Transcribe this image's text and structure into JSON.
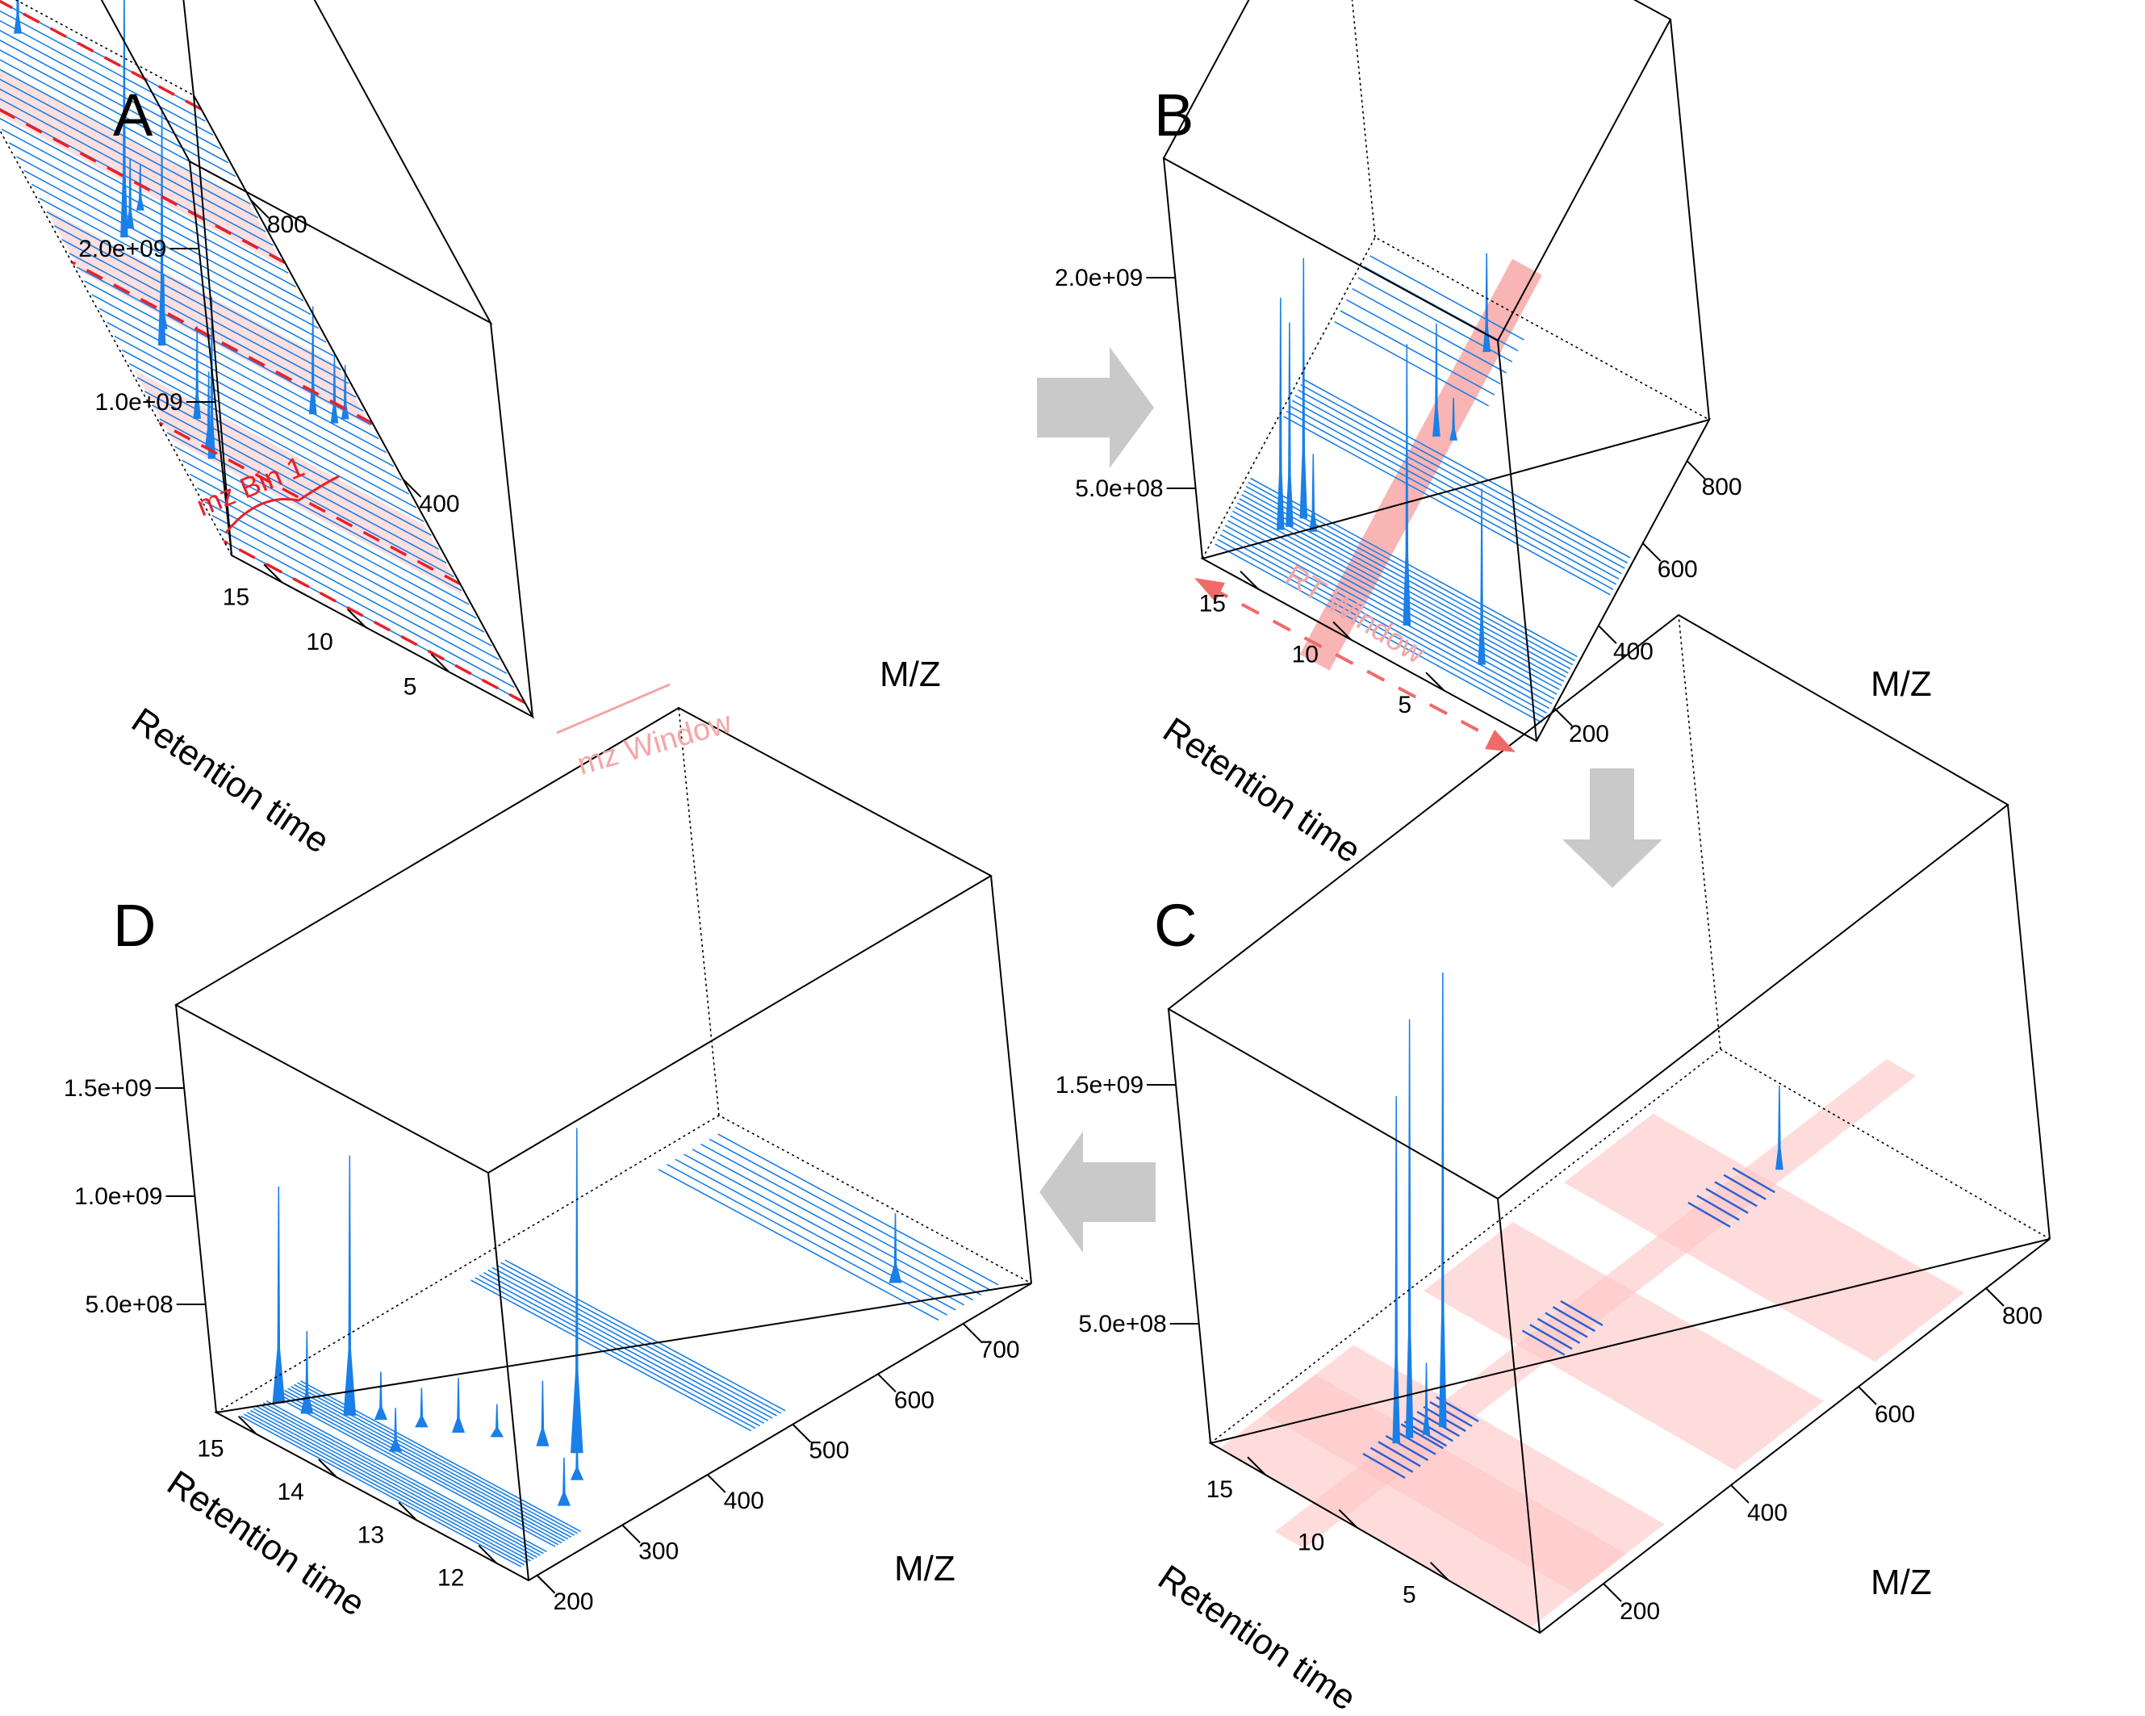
{
  "chart_data": [
    {
      "panel": "A",
      "type": "3d-spectrum",
      "zlabel": "",
      "xlabel": "Retention time",
      "ylabel": "M/Z",
      "z_ticks": [
        "1.0e+09",
        "2.0e+09"
      ],
      "rt_ticks": [
        "5",
        "10",
        "15"
      ],
      "mz_ticks": [
        "400",
        "800"
      ],
      "annotations": [
        "mz Bin 1",
        "mz Window"
      ],
      "peaks": [
        {
          "rt": 15.2,
          "mz": 235,
          "intensity": 1050000000.0
        },
        {
          "rt": 15.0,
          "mz": 252,
          "intensity": 500000000.0
        },
        {
          "rt": 14.6,
          "mz": 300,
          "intensity": 600000000.0
        },
        {
          "rt": 14.2,
          "mz": 410,
          "intensity": 1550000000.0
        },
        {
          "rt": 13.3,
          "mz": 445,
          "intensity": 350000000.0
        },
        {
          "rt": 12.4,
          "mz": 588,
          "intensity": 1700000000.0
        },
        {
          "rt": 11.5,
          "mz": 612,
          "intensity": 450000000.0
        },
        {
          "rt": 9.8,
          "mz": 660,
          "intensity": 300000000.0
        },
        {
          "rt": 4.6,
          "mz": 435,
          "intensity": 700000000.0
        },
        {
          "rt": 3.2,
          "mz": 440,
          "intensity": 450000000.0
        },
        {
          "rt": 2.1,
          "mz": 460,
          "intensity": 350000000.0
        },
        {
          "rt": 12.0,
          "mz": 885,
          "intensity": 450000000.0
        }
      ]
    },
    {
      "panel": "B",
      "type": "3d-spectrum",
      "zlabel": "",
      "xlabel": "Retention time",
      "ylabel": "M/Z",
      "z_ticks": [
        "5.0e+08",
        "2.0e+09"
      ],
      "rt_ticks": [
        "5",
        "10",
        "15"
      ],
      "mz_ticks": [
        "200",
        "400",
        "600",
        "800"
      ],
      "annotations": [
        "RT Window"
      ],
      "peaks": [
        {
          "rt": 15.4,
          "mz": 255,
          "intensity": 1650000000.0
        },
        {
          "rt": 15.1,
          "mz": 270,
          "intensity": 1450000000.0
        },
        {
          "rt": 14.7,
          "mz": 300,
          "intensity": 1850000000.0
        },
        {
          "rt": 14.0,
          "mz": 285,
          "intensity": 550000000.0
        },
        {
          "rt": 8.0,
          "mz": 205,
          "intensity": 2000000000.0
        },
        {
          "rt": 4.0,
          "mz": 208,
          "intensity": 1250000000.0
        },
        {
          "rt": 11.0,
          "mz": 590,
          "intensity": 800000000.0
        },
        {
          "rt": 10.2,
          "mz": 600,
          "intensity": 300000000.0
        },
        {
          "rt": 10.8,
          "mz": 800,
          "intensity": 700000000.0
        }
      ]
    },
    {
      "panel": "C",
      "type": "3d-spectrum",
      "zlabel": "",
      "xlabel": "Retention time",
      "ylabel": "M/Z",
      "z_ticks": [
        "5.0e+08",
        "1.5e+09"
      ],
      "rt_ticks": [
        "5",
        "10",
        "15"
      ],
      "mz_ticks": [
        "200",
        "400",
        "600",
        "800"
      ],
      "peaks": [
        {
          "rt": 12.2,
          "mz": 225,
          "intensity": 1450000000.0
        },
        {
          "rt": 12.0,
          "mz": 240,
          "intensity": 1750000000.0
        },
        {
          "rt": 11.4,
          "mz": 275,
          "intensity": 1900000000.0
        },
        {
          "rt": 11.6,
          "mz": 255,
          "intensity": 300000000.0
        },
        {
          "rt": 11.3,
          "mz": 800,
          "intensity": 350000000.0
        }
      ]
    },
    {
      "panel": "D",
      "type": "3d-spectrum",
      "zlabel": "",
      "xlabel": "Retention time",
      "ylabel": "M/Z",
      "z_ticks": [
        "5.0e+08",
        "1.0e+09",
        "1.5e+09"
      ],
      "rt_ticks": [
        "12",
        "13",
        "14",
        "15"
      ],
      "mz_ticks": [
        "200",
        "300",
        "400",
        "500",
        "600",
        "700"
      ],
      "peaks": [
        {
          "rt": 15.2,
          "mz": 235,
          "intensity": 1000000000.0
        },
        {
          "rt": 14.9,
          "mz": 240,
          "intensity": 380000000.0
        },
        {
          "rt": 14.6,
          "mz": 262,
          "intensity": 1200000000.0
        },
        {
          "rt": 14.35,
          "mz": 275,
          "intensity": 220000000.0
        },
        {
          "rt": 14.0,
          "mz": 290,
          "intensity": 180000000.0
        },
        {
          "rt": 13.7,
          "mz": 305,
          "intensity": 250000000.0
        },
        {
          "rt": 13.4,
          "mz": 322,
          "intensity": 150000000.0
        },
        {
          "rt": 13.0,
          "mz": 338,
          "intensity": 300000000.0
        },
        {
          "rt": 12.7,
          "mz": 350,
          "intensity": 1500000000.0
        },
        {
          "rt": 12.4,
          "mz": 322,
          "intensity": 200000000.0
        },
        {
          "rt": 13.9,
          "mz": 250,
          "intensity": 200000000.0
        },
        {
          "rt": 12.2,
          "mz": 288,
          "intensity": 220000000.0
        },
        {
          "rt": 12.5,
          "mz": 705,
          "intensity": 320000000.0
        }
      ]
    }
  ]
}
